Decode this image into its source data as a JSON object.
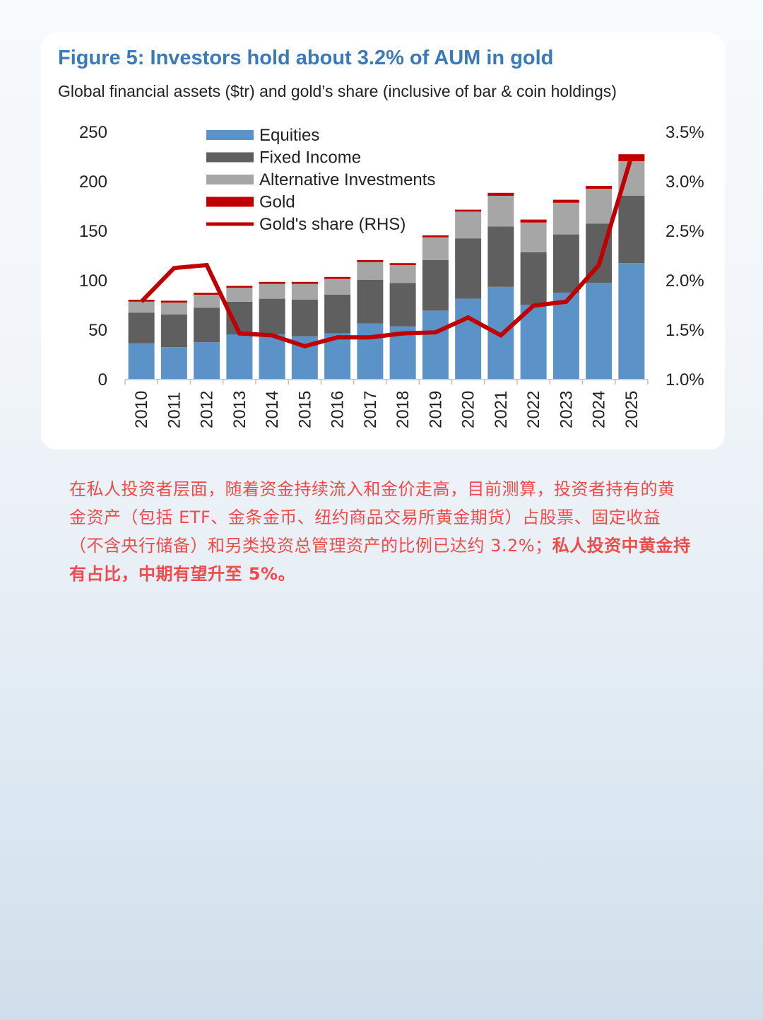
{
  "figure": {
    "title": "Figure 5: Investors hold about 3.2% of AUM in gold",
    "subtitle": "Global financial assets ($tr) and gold’s share (inclusive of bar & coin holdings)"
  },
  "chart_data": {
    "type": "bar",
    "stacked": true,
    "title": "Figure 5: Investors hold about 3.2% of AUM in gold",
    "subtitle": "Global financial assets ($tr) and gold’s share (inclusive of bar & coin holdings)",
    "categories": [
      "2010",
      "2011",
      "2012",
      "2013",
      "2014",
      "2015",
      "2016",
      "2017",
      "2018",
      "2019",
      "2020",
      "2021",
      "2022",
      "2023",
      "2024",
      "2025"
    ],
    "ylim": [
      0,
      250
    ],
    "yticks": [
      "0",
      "50",
      "100",
      "150",
      "200",
      "250"
    ],
    "y2lim": [
      1.0,
      3.5
    ],
    "y2ticks": [
      "1.0%",
      "1.5%",
      "2.0%",
      "2.5%",
      "3.0%",
      "3.5%"
    ],
    "legend_position": "top-left",
    "grid": false,
    "series": [
      {
        "name": "Equities",
        "type": "bar",
        "color": "#5b93c9",
        "values": [
          36,
          32,
          37,
          45,
          45,
          43,
          46,
          56,
          53,
          69,
          81,
          93,
          75,
          87,
          97,
          117
        ]
      },
      {
        "name": "Fixed Income",
        "type": "bar",
        "color": "#5f5f5f",
        "values": [
          31,
          33,
          35,
          33,
          36,
          37,
          39,
          44,
          44,
          51,
          61,
          61,
          53,
          59,
          60,
          68
        ]
      },
      {
        "name": "Alternative Investments",
        "type": "bar",
        "color": "#a6a6a6",
        "values": [
          11,
          12,
          13,
          14,
          15,
          16,
          16,
          18,
          18,
          23,
          27,
          31,
          30,
          32,
          35,
          35
        ]
      },
      {
        "name": "Gold",
        "type": "bar",
        "color": "#c00000",
        "values": [
          2,
          2,
          2,
          2,
          2,
          2,
          2,
          2,
          2,
          2,
          2,
          3,
          3,
          3,
          3,
          7
        ]
      },
      {
        "name": "Gold's share (RHS)",
        "type": "line",
        "axis": "right",
        "color": "#c00000",
        "values": [
          1.78,
          2.12,
          2.15,
          1.46,
          1.44,
          1.33,
          1.42,
          1.42,
          1.46,
          1.47,
          1.62,
          1.44,
          1.74,
          1.78,
          2.15,
          3.25
        ]
      }
    ]
  },
  "caption": {
    "normal": "在私人投资者层面，随着资金持续流入和金价走高，目前测算，投资者持有的黄金资产（包括 ETF、金条金币、纽约商品交易所黄金期货）占股票、固定收益（不含央行储备）和另类投资总管理资产的比例已达约 3.2%；",
    "bold": "私人投资中黄金持有占比，中期有望升至 5%。"
  }
}
